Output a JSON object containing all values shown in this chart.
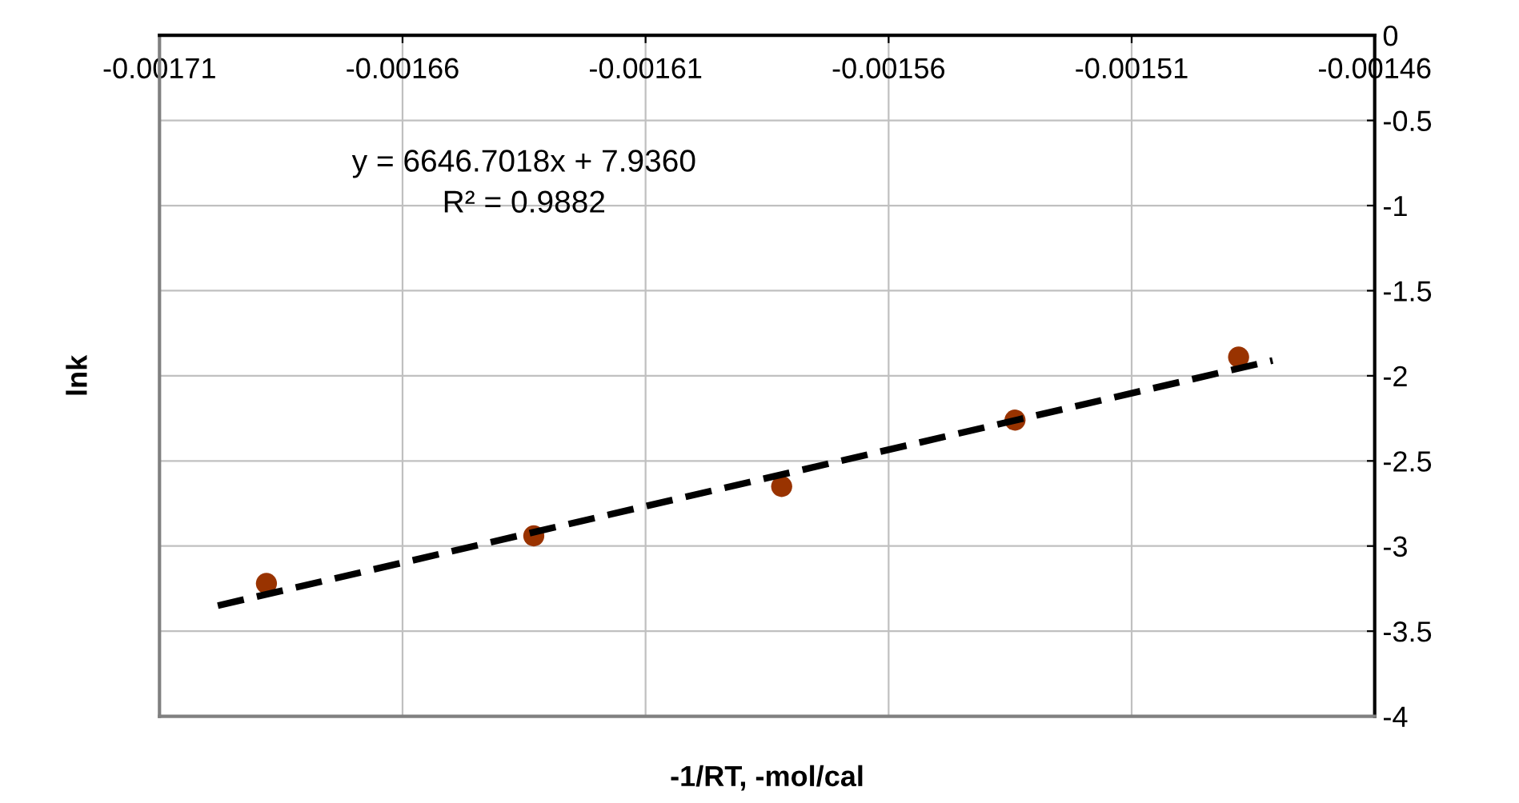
{
  "chart_data": {
    "type": "scatter",
    "xlabel": "-1/RT, -mol/cal",
    "ylabel": "lnk",
    "x": [
      -0.001688,
      -0.001633,
      -0.001582,
      -0.001534,
      -0.001488
    ],
    "series": [
      {
        "color": "#993300",
        "marker": "circle",
        "values": [
          -3.22,
          -2.94,
          -2.65,
          -2.26,
          -1.89
        ]
      },
      {
        "type": "line",
        "color": "#000000",
        "line_style": "dashed",
        "x": [
          -0.001698,
          -0.001481
        ],
        "values": [
          -3.35,
          -1.91
        ]
      }
    ],
    "xlim": [
      -0.00171,
      -0.00146
    ],
    "xticks": [
      -0.00171,
      -0.00166,
      -0.00161,
      -0.00156,
      -0.00151,
      -0.00146
    ],
    "ylim": [
      -4,
      0
    ],
    "yticks": [
      -4,
      -3.5,
      -3,
      -2.5,
      -2,
      -1.5,
      -1,
      -0.5,
      0
    ],
    "grid": true,
    "annotations": [
      "y = 6646.7018x + 7.9360",
      "R² = 0.9882"
    ]
  }
}
